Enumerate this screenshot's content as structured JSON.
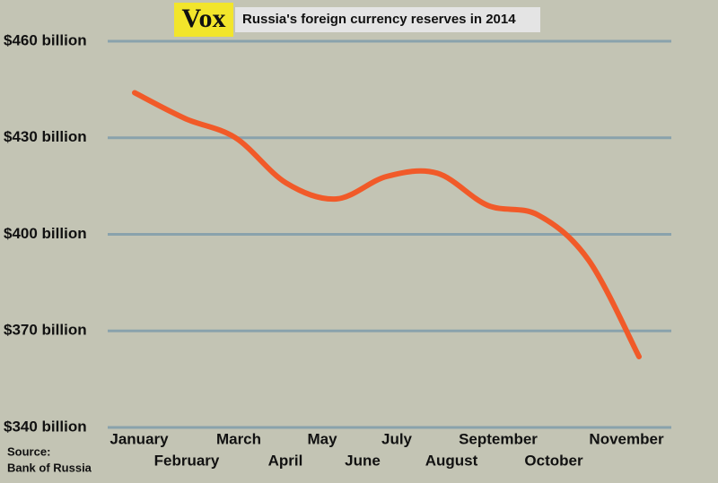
{
  "chart_data": {
    "type": "line",
    "logo": "Vox",
    "title": "Russia's foreign currency reserves in 2014",
    "source": [
      "Source:",
      "Bank of Russia"
    ],
    "categories": [
      "January",
      "February",
      "March",
      "April",
      "May",
      "June",
      "July",
      "August",
      "September",
      "October",
      "November"
    ],
    "series": [
      {
        "name": "Reserves",
        "color": "#f15a29",
        "values": [
          444,
          436,
          430,
          416,
          411,
          418,
          419,
          409,
          406,
          392,
          362
        ]
      }
    ],
    "ylim": [
      340,
      460
    ],
    "yticks": [
      {
        "value": 340,
        "label": "$340 billion"
      },
      {
        "value": 370,
        "label": "$370 billion"
      },
      {
        "value": 400,
        "label": "$400 billion"
      },
      {
        "value": 430,
        "label": "$430 billion"
      },
      {
        "value": 460,
        "label": "$460 billion"
      }
    ],
    "grid": true
  }
}
